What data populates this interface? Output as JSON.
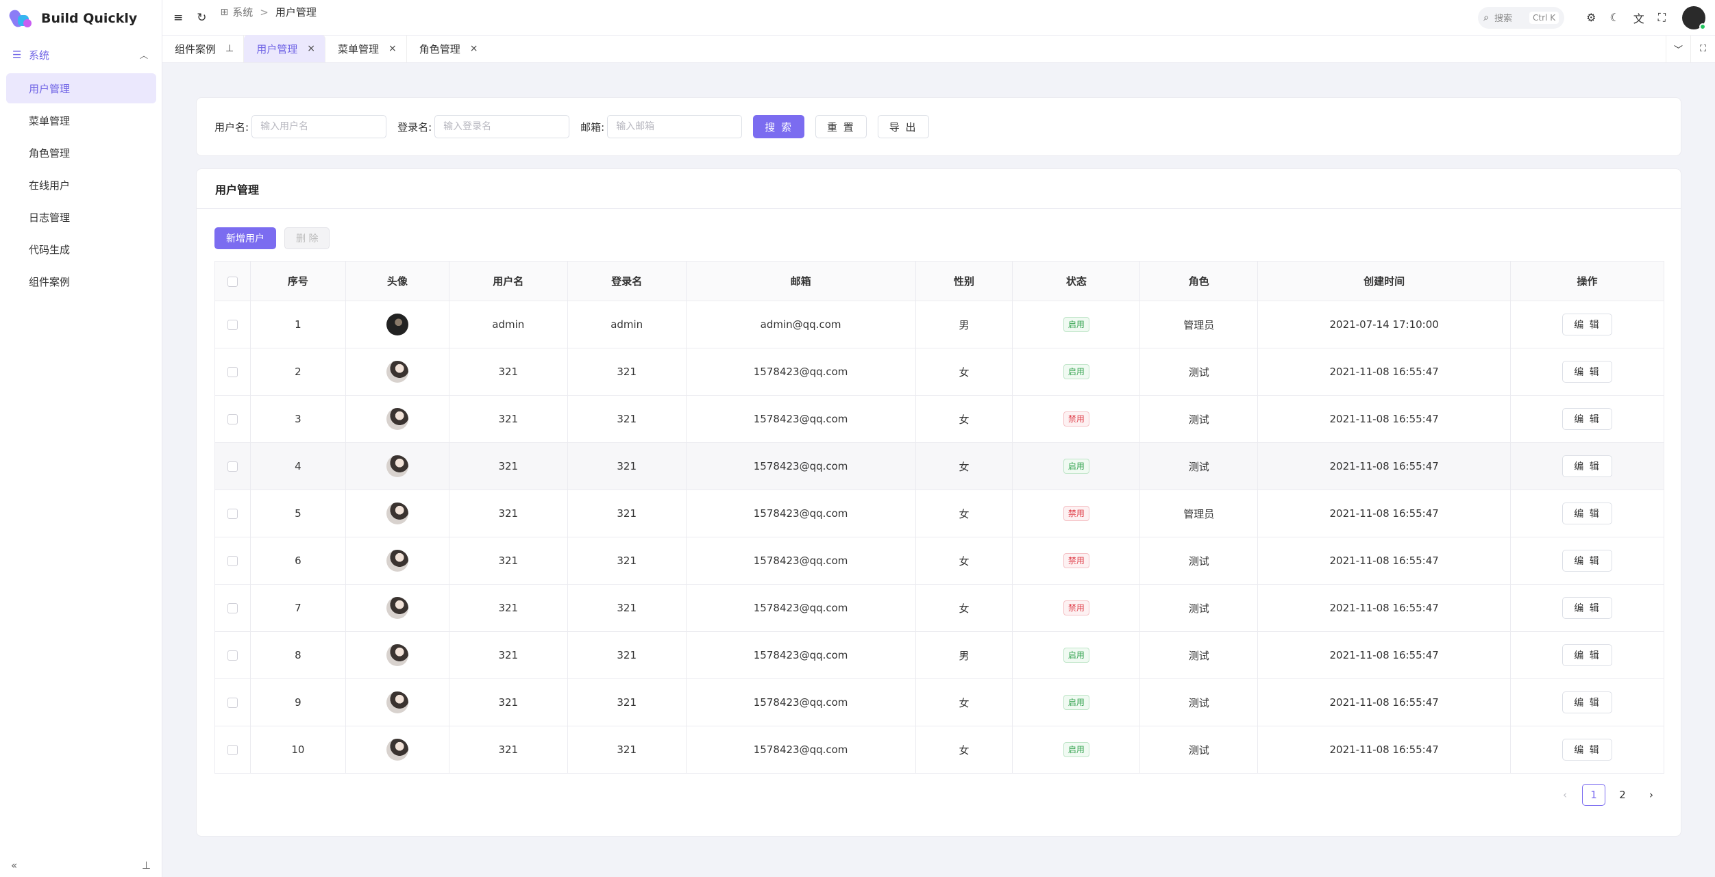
{
  "app": {
    "title": "Build Quickly"
  },
  "sidebar": {
    "group_label": "系统",
    "items": [
      {
        "label": "用户管理",
        "active": true
      },
      {
        "label": "菜单管理",
        "active": false
      },
      {
        "label": "角色管理",
        "active": false
      },
      {
        "label": "在线用户",
        "active": false
      },
      {
        "label": "日志管理",
        "active": false
      },
      {
        "label": "代码生成",
        "active": false
      },
      {
        "label": "组件案例",
        "active": false
      }
    ]
  },
  "header": {
    "breadcrumb": [
      "系统",
      "用户管理"
    ],
    "search_label": "搜索",
    "search_shortcut": "Ctrl K"
  },
  "tabs": [
    {
      "label": "组件案例",
      "pinned": true
    },
    {
      "label": "用户管理",
      "active": true
    },
    {
      "label": "菜单管理"
    },
    {
      "label": "角色管理"
    }
  ],
  "search_form": {
    "username_label": "用户名:",
    "username_placeholder": "输入用户名",
    "login_label": "登录名:",
    "login_placeholder": "输入登录名",
    "email_label": "邮箱:",
    "email_placeholder": "输入邮箱",
    "search_button": "搜 索",
    "reset_button": "重 置",
    "export_button": "导 出"
  },
  "table_card": {
    "title": "用户管理",
    "add_button": "新增用户",
    "delete_button": "删 除",
    "columns": [
      "序号",
      "头像",
      "用户名",
      "登录名",
      "邮箱",
      "性别",
      "状态",
      "角色",
      "创建时间",
      "操作"
    ],
    "edit_label": "编 辑",
    "rows": [
      {
        "no": "1",
        "username": "admin",
        "login": "admin",
        "email": "admin@qq.com",
        "gender": "男",
        "status": "启用",
        "status_on": true,
        "role": "管理员",
        "created": "2021-07-14 17:10:00"
      },
      {
        "no": "2",
        "username": "321",
        "login": "321",
        "email": "1578423@qq.com",
        "gender": "女",
        "status": "启用",
        "status_on": true,
        "role": "测试",
        "created": "2021-11-08 16:55:47"
      },
      {
        "no": "3",
        "username": "321",
        "login": "321",
        "email": "1578423@qq.com",
        "gender": "女",
        "status": "禁用",
        "status_on": false,
        "role": "测试",
        "created": "2021-11-08 16:55:47"
      },
      {
        "no": "4",
        "username": "321",
        "login": "321",
        "email": "1578423@qq.com",
        "gender": "女",
        "status": "启用",
        "status_on": true,
        "role": "测试",
        "created": "2021-11-08 16:55:47"
      },
      {
        "no": "5",
        "username": "321",
        "login": "321",
        "email": "1578423@qq.com",
        "gender": "女",
        "status": "禁用",
        "status_on": false,
        "role": "管理员",
        "created": "2021-11-08 16:55:47"
      },
      {
        "no": "6",
        "username": "321",
        "login": "321",
        "email": "1578423@qq.com",
        "gender": "女",
        "status": "禁用",
        "status_on": false,
        "role": "测试",
        "created": "2021-11-08 16:55:47"
      },
      {
        "no": "7",
        "username": "321",
        "login": "321",
        "email": "1578423@qq.com",
        "gender": "女",
        "status": "禁用",
        "status_on": false,
        "role": "测试",
        "created": "2021-11-08 16:55:47"
      },
      {
        "no": "8",
        "username": "321",
        "login": "321",
        "email": "1578423@qq.com",
        "gender": "男",
        "status": "启用",
        "status_on": true,
        "role": "测试",
        "created": "2021-11-08 16:55:47"
      },
      {
        "no": "9",
        "username": "321",
        "login": "321",
        "email": "1578423@qq.com",
        "gender": "女",
        "status": "启用",
        "status_on": true,
        "role": "测试",
        "created": "2021-11-08 16:55:47"
      },
      {
        "no": "10",
        "username": "321",
        "login": "321",
        "email": "1578423@qq.com",
        "gender": "女",
        "status": "启用",
        "status_on": true,
        "role": "测试",
        "created": "2021-11-08 16:55:47"
      }
    ]
  },
  "pagination": {
    "pages": [
      "1",
      "2"
    ],
    "current": "1"
  },
  "colors": {
    "accent": "#7b6cf0",
    "enabled": "#3aa655",
    "disabled": "#e0424d"
  }
}
